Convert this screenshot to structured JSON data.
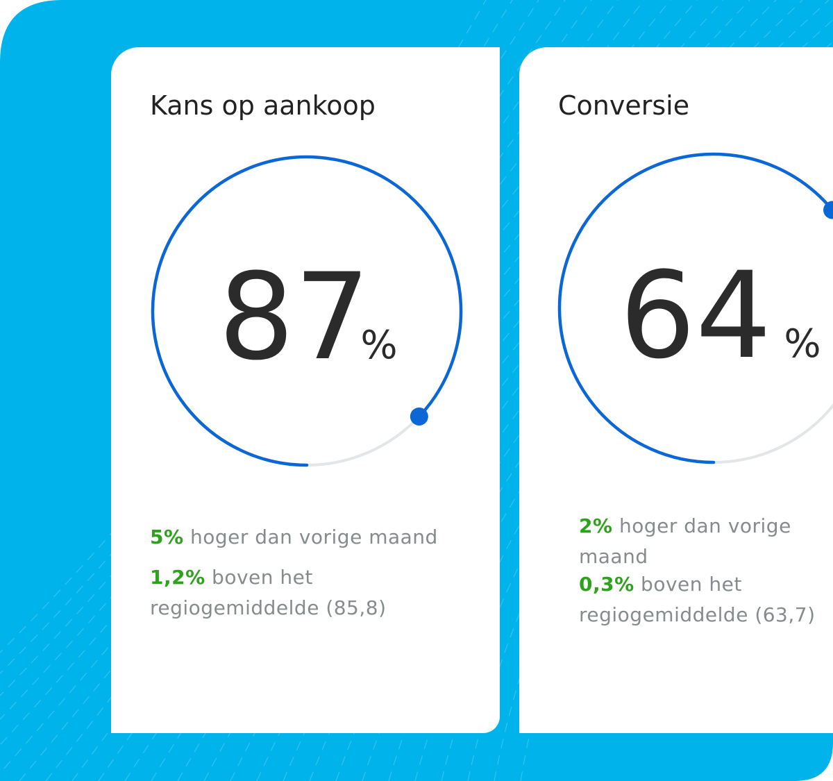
{
  "colors": {
    "background": "#00b3ea",
    "card": "#ffffff",
    "gauge_progress": "#0b66d6",
    "gauge_track": "#e2e6e9",
    "positive": "#2ea11d",
    "muted_text": "#868b8e"
  },
  "cards": [
    {
      "title": "Kans op aankoop",
      "value": "87",
      "unit": "%",
      "progress": 0.87,
      "stats": [
        {
          "highlight": "5%",
          "text": " hoger dan vorige maand"
        },
        {
          "highlight": "1,2%",
          "text": " boven het regiogemiddelde (85,8)"
        }
      ]
    },
    {
      "title": "Conversie",
      "value": "64",
      "unit": "%",
      "progress": 0.64,
      "stats": [
        {
          "highlight": "2%",
          "text": " hoger dan vorige maand"
        },
        {
          "highlight": "0,3%",
          "text": " boven het regiogemiddelde (63,7)"
        }
      ]
    }
  ]
}
